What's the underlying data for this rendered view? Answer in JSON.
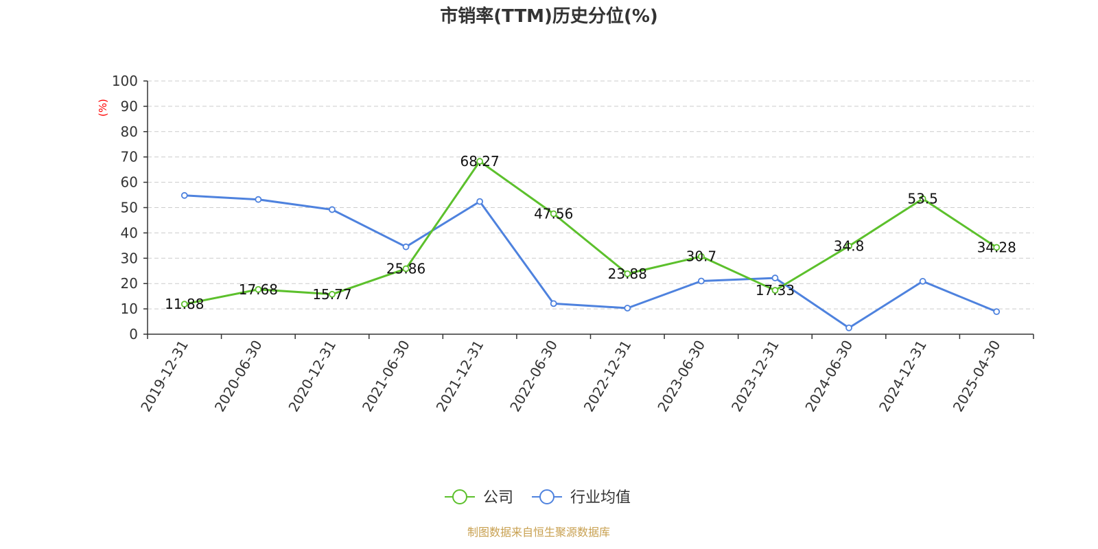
{
  "chart_data": {
    "type": "line",
    "title": "市销率(TTM)历史分位(%)",
    "ylabel": "(%)",
    "ylim": [
      0,
      100
    ],
    "yticks": [
      "0",
      "10",
      "20",
      "30",
      "40",
      "50",
      "60",
      "70",
      "80",
      "90",
      "100"
    ],
    "categories": [
      "2019-12-31",
      "2020-06-30",
      "2020-12-31",
      "2021-06-30",
      "2021-12-31",
      "2022-06-30",
      "2022-12-31",
      "2023-06-30",
      "2023-12-31",
      "2024-06-30",
      "2024-12-31",
      "2025-04-30"
    ],
    "grid": true,
    "legend_position": "bottom",
    "series": [
      {
        "name": "公司",
        "color": "#5cc02c",
        "values": [
          11.88,
          17.68,
          15.77,
          25.86,
          68.27,
          47.56,
          23.88,
          30.7,
          17.33,
          34.8,
          53.5,
          34.28
        ],
        "labels": [
          "11.88",
          "17.68",
          "15.77",
          "25.86",
          "68.27",
          "47.56",
          "23.88",
          "30.7",
          "17.33",
          "34.8",
          "53.5",
          "34.28"
        ]
      },
      {
        "name": "行业均值",
        "color": "#4e82de",
        "values": [
          54.8,
          53.2,
          49.2,
          34.5,
          52.4,
          12.1,
          10.3,
          21.0,
          22.2,
          2.5,
          20.9,
          8.9
        ]
      }
    ]
  },
  "source": "制图数据来自恒生聚源数据库",
  "colors": {
    "axis": "#333333",
    "grid": "#cccccc",
    "unit": "#ff0000",
    "source": "#c8a050"
  }
}
